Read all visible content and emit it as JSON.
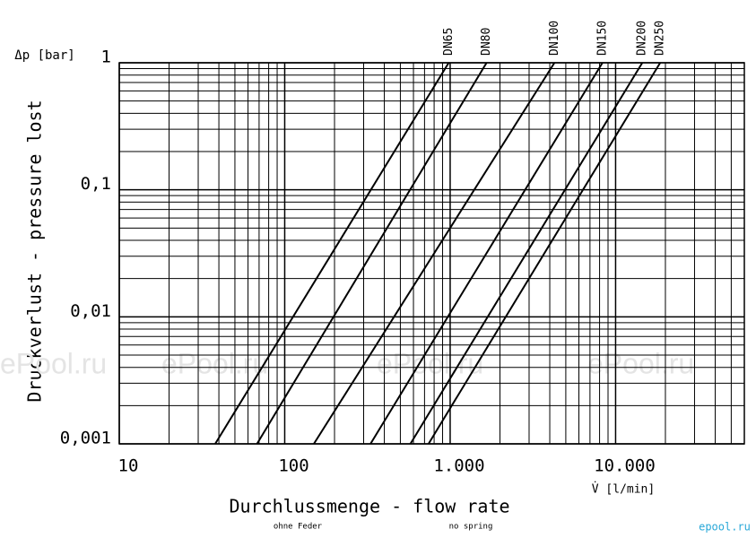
{
  "chart_data": {
    "type": "line",
    "y_unit": "Δp [bar]",
    "ylabel": "Druckverlust - pressure lost",
    "xlabel": "Durchlussmenge - flow rate",
    "x_unit": "V̇ [l/min]",
    "notes": [
      "ohne Feder",
      "no spring"
    ],
    "watermarks": [
      "ePool.ru",
      "ePool.ru",
      "ePool.ru",
      "ePool.ru"
    ],
    "credit": "epool.ru",
    "xscale": "log",
    "yscale": "log",
    "xlim": [
      10,
      60000
    ],
    "ylim": [
      0.001,
      1
    ],
    "xticks": [
      10,
      100,
      {
        "value": 1000,
        "label": "1.000"
      },
      {
        "value": 10000,
        "label": "10.000"
      }
    ],
    "yticks": [
      {
        "value": 0.001,
        "label": "0,001"
      },
      {
        "value": 0.01,
        "label": "0,01"
      },
      {
        "value": 0.1,
        "label": "0,1"
      },
      1
    ],
    "grid": true,
    "minor_grid": true,
    "series": [
      {
        "name": "DN65",
        "color": "#000000",
        "x": [
          38,
          980
        ],
        "values": [
          0.001,
          1
        ]
      },
      {
        "name": "DN80",
        "color": "#000000",
        "x": [
          68,
          1660
        ],
        "values": [
          0.001,
          1
        ]
      },
      {
        "name": "DN100",
        "color": "#000000",
        "x": [
          150,
          4270
        ],
        "values": [
          0.001,
          1
        ]
      },
      {
        "name": "DN150",
        "color": "#000000",
        "x": [
          330,
          8330
        ],
        "values": [
          0.001,
          1
        ]
      },
      {
        "name": "DN200",
        "color": "#000000",
        "x": [
          575,
          14500
        ],
        "values": [
          0.001,
          1
        ]
      },
      {
        "name": "DN250",
        "color": "#000000",
        "x": [
          740,
          18600
        ],
        "values": [
          0.001,
          1
        ]
      }
    ]
  }
}
